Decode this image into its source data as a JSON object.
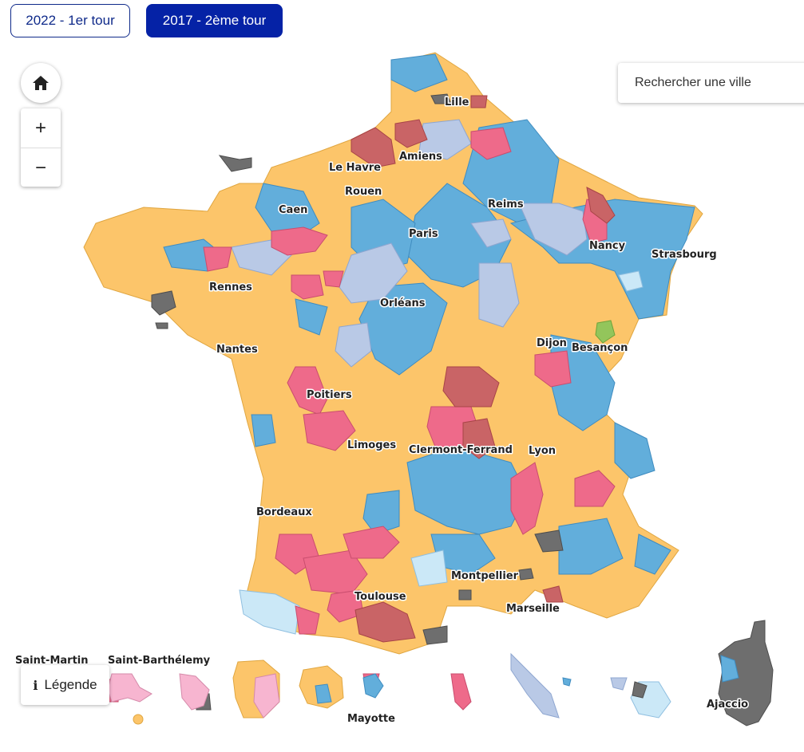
{
  "tabs": [
    {
      "label": "2022 - 1er tour"
    },
    {
      "label": "2017 - 2ème tour"
    }
  ],
  "search": {
    "placeholder": "Rechercher une ville"
  },
  "controls": {
    "zoom_in": "+",
    "zoom_out": "−",
    "home_icon": "home-icon"
  },
  "legend": {
    "label": "Légende"
  },
  "colors": {
    "orange": "#fcc56a",
    "blue": "#62aedb",
    "lightblue": "#b9c9e6",
    "paleblue": "#cbe8f7",
    "pink": "#ee6a8a",
    "darkred": "#c96466",
    "grey": "#6e6e6e",
    "lightpink": "#f7b5d0",
    "green": "#93c55b",
    "active_tab": "#0522a6"
  },
  "cities": [
    {
      "name": "Lille"
    },
    {
      "name": "Amiens"
    },
    {
      "name": "Le Havre"
    },
    {
      "name": "Rouen"
    },
    {
      "name": "Caen"
    },
    {
      "name": "Reims"
    },
    {
      "name": "Paris"
    },
    {
      "name": "Nancy"
    },
    {
      "name": "Strasbourg"
    },
    {
      "name": "Rennes"
    },
    {
      "name": "Orléans"
    },
    {
      "name": "Nantes"
    },
    {
      "name": "Dijon"
    },
    {
      "name": "Besançon"
    },
    {
      "name": "Poitiers"
    },
    {
      "name": "Limoges"
    },
    {
      "name": "Clermont-Ferrand"
    },
    {
      "name": "Lyon"
    },
    {
      "name": "Bordeaux"
    },
    {
      "name": "Montpellier"
    },
    {
      "name": "Toulouse"
    },
    {
      "name": "Marseille"
    },
    {
      "name": "Ajaccio"
    }
  ],
  "territories": [
    {
      "name": "Saint-Martin"
    },
    {
      "name": "Saint-Barthélemy"
    },
    {
      "name": "Mayotte"
    }
  ]
}
